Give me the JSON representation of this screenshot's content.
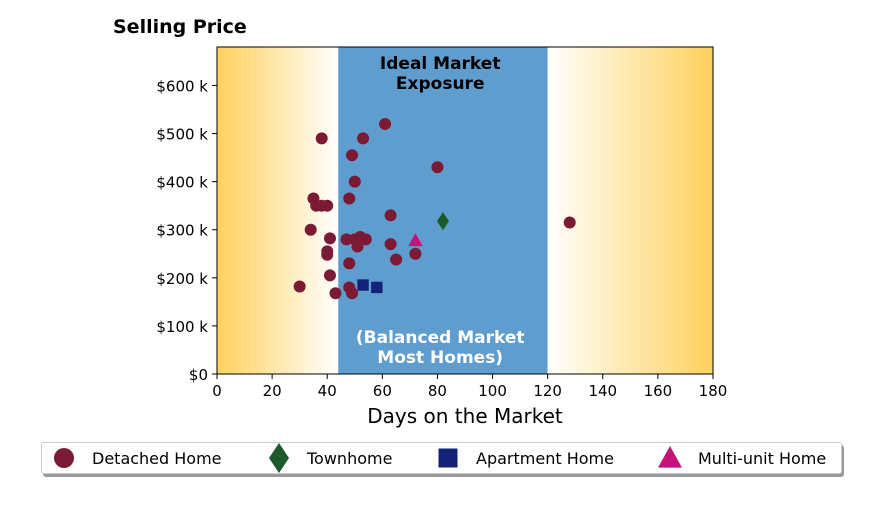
{
  "chart_data": {
    "type": "scatter",
    "title": "",
    "ylabel": "Selling Price",
    "xlabel": "Days on the Market",
    "xlim": [
      0,
      180
    ],
    "ylim": [
      0,
      680
    ],
    "x_ticks": [
      0,
      20,
      40,
      60,
      80,
      100,
      120,
      140,
      160,
      180
    ],
    "y_ticks": [
      0,
      100,
      200,
      300,
      400,
      500,
      600
    ],
    "y_tick_labels": [
      "$0",
      "$100 k",
      "$200 k",
      "$300 k",
      "$400 k",
      "$500 k",
      "$600 k"
    ],
    "grid": false,
    "legend_position": "bottom",
    "regions": [
      {
        "from": 0,
        "to": 44,
        "style": "gradient",
        "color": "#ffd15c"
      },
      {
        "from": 44,
        "to": 120,
        "style": "solid",
        "color": "#5f9dcf"
      },
      {
        "from": 120,
        "to": 180,
        "style": "gradient",
        "color": "#ffd15c"
      }
    ],
    "annotations": [
      {
        "text": [
          "Ideal Market",
          "Exposure"
        ],
        "x": 81,
        "y_top": 670,
        "color": "#000000"
      },
      {
        "text": [
          "(Balanced Market",
          "Most Homes)"
        ],
        "x": 81,
        "y_top": 100,
        "color": "#ffffff"
      }
    ],
    "series": [
      {
        "name": "Detached Home",
        "marker": "circle",
        "color": "#7b1a35",
        "points": [
          [
            30,
            182
          ],
          [
            35,
            365
          ],
          [
            36,
            350
          ],
          [
            38,
            490
          ],
          [
            38,
            350
          ],
          [
            40,
            350
          ],
          [
            34,
            300
          ],
          [
            40,
            248
          ],
          [
            40,
            255
          ],
          [
            41,
            282
          ],
          [
            41,
            205
          ],
          [
            43,
            168
          ],
          [
            47,
            280
          ],
          [
            48,
            365
          ],
          [
            48,
            230
          ],
          [
            48,
            180
          ],
          [
            49,
            168
          ],
          [
            49,
            455
          ],
          [
            50,
            400
          ],
          [
            50,
            280
          ],
          [
            51,
            265
          ],
          [
            52,
            285
          ],
          [
            53,
            490
          ],
          [
            54,
            280
          ],
          [
            61,
            520
          ],
          [
            63,
            330
          ],
          [
            63,
            270
          ],
          [
            65,
            238
          ],
          [
            72,
            250
          ],
          [
            80,
            430
          ],
          [
            128,
            315
          ]
        ]
      },
      {
        "name": "Townhome",
        "marker": "diamond",
        "color": "#1d5a2b",
        "points": [
          [
            82,
            318
          ]
        ]
      },
      {
        "name": "Apartment Home",
        "marker": "square",
        "color": "#14227a",
        "points": [
          [
            53,
            185
          ],
          [
            58,
            180
          ]
        ]
      },
      {
        "name": "Multi-unit Home",
        "marker": "triangle",
        "color": "#c4147b",
        "points": [
          [
            72,
            278
          ]
        ]
      }
    ]
  }
}
